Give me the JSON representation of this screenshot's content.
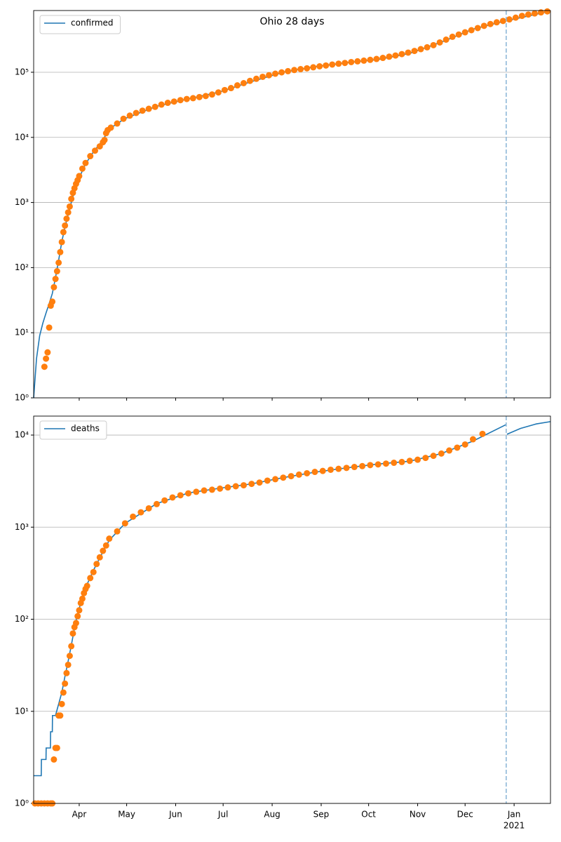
{
  "chart_data": [
    {
      "type": "line",
      "title": "Ohio 28 days",
      "log_y": true,
      "grid": "y",
      "legend": "upper left",
      "xlim": [
        2.2,
        329
      ],
      "xticks": [
        31,
        61,
        92,
        122,
        153,
        184,
        214,
        245,
        275,
        306
      ],
      "ylim": [
        1,
        887000
      ],
      "yticks": [
        {
          "value": 1,
          "label": "10⁰"
        },
        {
          "value": 10,
          "label": "10¹"
        },
        {
          "value": 100,
          "label": "10²"
        },
        {
          "value": 1000,
          "label": "10³"
        },
        {
          "value": 10000,
          "label": "10⁴"
        },
        {
          "value": 100000,
          "label": "10⁵"
        }
      ],
      "vline": 301,
      "vline_color": "#8fb8d8",
      "series": [
        {
          "name": "confirmed",
          "mode": "lines",
          "color": "#1f77b4",
          "x": [
            2.2,
            4,
            6,
            8,
            10,
            12,
            14,
            16,
            18,
            20,
            22,
            24,
            26,
            28,
            31,
            35,
            40,
            45,
            48,
            50,
            60,
            80,
            100,
            120,
            140,
            160,
            180,
            200,
            220,
            240,
            260,
            280,
            300,
            315,
            329
          ],
          "values": [
            1,
            4,
            9,
            14,
            20,
            28,
            40,
            70,
            130,
            250,
            420,
            650,
            1000,
            1500,
            2400,
            3900,
            6000,
            8500,
            11000,
            13500,
            19500,
            30000,
            39000,
            50000,
            72000,
            100000,
            122000,
            140000,
            157000,
            195000,
            290000,
            460000,
            610000,
            730000,
            870000
          ]
        },
        {
          "mode": "markers",
          "color": "#ff7f0e",
          "x": [
            9,
            10,
            11,
            12,
            13,
            14,
            15,
            16,
            17,
            18,
            19,
            20,
            21,
            22,
            23,
            24,
            25,
            26,
            27,
            28,
            29,
            30,
            31,
            33,
            35,
            38,
            41,
            44,
            46,
            47,
            48,
            49,
            51,
            55,
            59,
            63,
            67,
            71,
            75,
            79,
            83,
            87,
            91,
            95,
            99,
            103,
            107,
            111,
            115,
            119,
            123,
            127,
            131,
            135,
            139,
            143,
            147,
            151,
            155,
            159,
            163,
            167,
            171,
            175,
            179,
            183,
            187,
            191,
            195,
            199,
            203,
            207,
            211,
            215,
            219,
            223,
            227,
            231,
            235,
            239,
            243,
            247,
            251,
            255,
            259,
            263,
            267,
            271,
            275,
            279,
            283,
            287,
            291,
            295,
            299,
            303,
            307,
            311,
            315,
            319,
            323,
            327
          ],
          "values": [
            3,
            4,
            5,
            12,
            26,
            30,
            50,
            67,
            88,
            119,
            173,
            247,
            351,
            442,
            564,
            704,
            867,
            1137,
            1406,
            1653,
            1933,
            2199,
            2547,
            3312,
            4043,
            5148,
            6250,
            7280,
            8414,
            9107,
            11602,
            12919,
            14117,
            16325,
            19335,
            21576,
            23697,
            25721,
            27474,
            29436,
            31911,
            33915,
            35513,
            37320,
            38837,
            40004,
            41576,
            43122,
            45537,
            49041,
            53301,
            57150,
            62856,
            68026,
            73822,
            79405,
            85177,
            90006,
            94956,
            99613,
            103900,
            108206,
            111611,
            115052,
            119131,
            123378,
            127010,
            131399,
            135297,
            138952,
            143360,
            147097,
            150847,
            155065,
            160082,
            166077,
            173298,
            180935,
            189968,
            200245,
            212426,
            226452,
            241725,
            260658,
            287023,
            316806,
            350555,
            379539,
            410812,
            442865,
            477471,
            516124,
            550931,
            584500,
            613718,
            648000,
            690000,
            735000,
            770000,
            800000,
            830000,
            860000
          ]
        }
      ]
    },
    {
      "type": "line",
      "log_y": true,
      "grid": "y",
      "legend": "upper left",
      "xlim": [
        2.2,
        329
      ],
      "xticks": [
        {
          "value": 31,
          "label": "Apr"
        },
        {
          "value": 61,
          "label": "May"
        },
        {
          "value": 92,
          "label": "Jun"
        },
        {
          "value": 122,
          "label": "Jul"
        },
        {
          "value": 153,
          "label": "Aug"
        },
        {
          "value": 184,
          "label": "Sep"
        },
        {
          "value": 214,
          "label": "Oct"
        },
        {
          "value": 245,
          "label": "Nov"
        },
        {
          "value": 275,
          "label": "Dec"
        },
        {
          "value": 306,
          "label": "Jan"
        }
      ],
      "x_sublabel": "2021",
      "ylim": [
        1,
        16070
      ],
      "yticks": [
        {
          "value": 1,
          "label": "10⁰"
        },
        {
          "value": 10,
          "label": "10¹"
        },
        {
          "value": 100,
          "label": "10²"
        },
        {
          "value": 1000,
          "label": "10³"
        },
        {
          "value": 10000,
          "label": "10⁴"
        }
      ],
      "vline": 301,
      "vline_color": "#8fb8d8",
      "series": [
        {
          "name": "deaths",
          "mode": "lines",
          "color": "#1f77b4",
          "x": [
            2.2,
            7,
            7.1,
            10,
            10.1,
            12.8,
            12.9,
            14,
            14.1,
            16,
            18,
            20,
            22,
            24,
            26,
            28,
            30,
            33,
            36,
            40,
            45,
            50,
            60,
            80,
            100,
            120,
            140,
            160,
            180,
            200,
            220,
            240,
            260,
            280,
            301,
            301,
            301.5,
            310,
            320,
            329
          ],
          "values": [
            2,
            2,
            3,
            3,
            4,
            4,
            6,
            6,
            9,
            9,
            12,
            16,
            24,
            35,
            52,
            80,
            115,
            170,
            240,
            340,
            500,
            720,
            1100,
            1800,
            2350,
            2650,
            2950,
            3450,
            3950,
            4400,
            4850,
            5200,
            6300,
            8600,
            13000,
            null,
            10200,
            11800,
            13200,
            14000
          ]
        },
        {
          "mode": "markers",
          "color": "#ff7f0e",
          "x": [
            3,
            5,
            7,
            9,
            11,
            13,
            14,
            15,
            16,
            17,
            18,
            19,
            20,
            21,
            22,
            23,
            24,
            25,
            26,
            27,
            28,
            29,
            30,
            31,
            32,
            33,
            34,
            35,
            36,
            38,
            40,
            42,
            44,
            46,
            48,
            50,
            55,
            60,
            65,
            70,
            75,
            80,
            85,
            90,
            95,
            100,
            105,
            110,
            115,
            120,
            125,
            130,
            135,
            140,
            145,
            150,
            155,
            160,
            165,
            170,
            175,
            180,
            185,
            190,
            195,
            200,
            205,
            210,
            215,
            220,
            225,
            230,
            235,
            240,
            245,
            250,
            255,
            260,
            265,
            270,
            275,
            280,
            286
          ],
          "values": [
            1,
            1,
            1,
            1,
            1,
            1,
            1,
            3,
            4,
            4,
            9,
            9,
            12,
            16,
            20,
            26,
            32,
            40,
            51,
            70,
            82,
            91,
            108,
            125,
            150,
            167,
            192,
            213,
            230,
            280,
            325,
            398,
            470,
            553,
            632,
            750,
            900,
            1100,
            1300,
            1450,
            1600,
            1780,
            1950,
            2100,
            2220,
            2330,
            2420,
            2500,
            2550,
            2620,
            2700,
            2780,
            2850,
            2950,
            3050,
            3200,
            3320,
            3450,
            3580,
            3720,
            3850,
            3980,
            4080,
            4200,
            4300,
            4400,
            4500,
            4600,
            4720,
            4800,
            4900,
            5000,
            5100,
            5250,
            5400,
            5650,
            5950,
            6300,
            6800,
            7300,
            7900,
            9000,
            10300
          ]
        }
      ]
    }
  ]
}
